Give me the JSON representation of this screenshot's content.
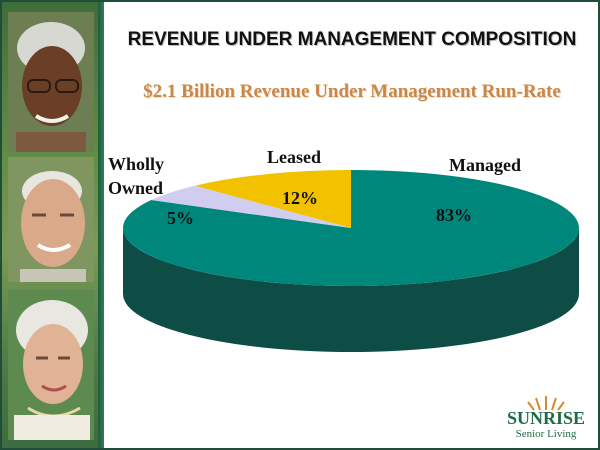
{
  "slide": {
    "title": "REVENUE UNDER MANAGEMENT COMPOSITION",
    "subtitle": "$2.1 Billion Revenue Under Management Run-Rate"
  },
  "chart_data": {
    "type": "pie",
    "style": "3d",
    "categories": [
      "Managed",
      "Wholly Owned",
      "Leased"
    ],
    "values": [
      83,
      5,
      12
    ],
    "value_labels": [
      "83%",
      "5%",
      "12%"
    ],
    "colors": [
      "#00877c",
      "#d0cdf0",
      "#f2c200"
    ],
    "side_colors": [
      "#0d4d45",
      "#8f8cb0",
      "#a88600"
    ]
  },
  "logo": {
    "brand": "SUNRISE",
    "tagline": "Senior Living"
  }
}
